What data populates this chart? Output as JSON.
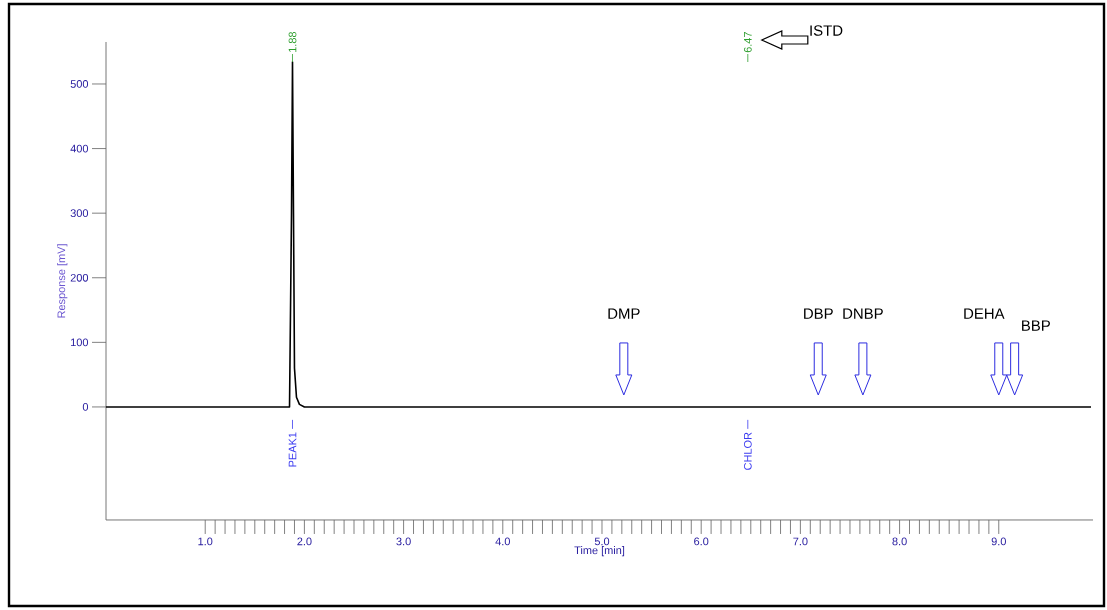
{
  "chart_data": {
    "type": "line",
    "xlabel": "Time [min]",
    "ylabel": "Response [mV]",
    "x": [
      0,
      1.85,
      1.87,
      1.88,
      1.89,
      1.9,
      1.92,
      1.95,
      2.0,
      9.93
    ],
    "series": [
      {
        "color": "#000000",
        "values": [
          0,
          0,
          300,
          534,
          300,
          60,
          15,
          4,
          0,
          0
        ]
      }
    ],
    "xlim": [
      0,
      9.95
    ],
    "ylim": [
      -175,
      565
    ],
    "xticks": [
      {
        "value": 1,
        "label": "1.0"
      },
      {
        "value": 2,
        "label": "2.0"
      },
      {
        "value": 3,
        "label": "3.0"
      },
      {
        "value": 4,
        "label": "4.0"
      },
      {
        "value": 5,
        "label": "5.0"
      },
      {
        "value": 6,
        "label": "6.0"
      },
      {
        "value": 7,
        "label": "7.0"
      },
      {
        "value": 8,
        "label": "8.0"
      },
      {
        "value": 9,
        "label": "9.0"
      }
    ],
    "yticks": [
      0,
      100,
      200,
      300,
      400,
      500
    ],
    "annotations": [
      {
        "text": "1.88",
        "x": 1.88,
        "y": 534
      },
      "PEAK1",
      "6.47",
      "ISTD",
      "CHLOR",
      "DMP",
      "DBP",
      "DNBP",
      "DEHA",
      "BBP"
    ]
  }
}
